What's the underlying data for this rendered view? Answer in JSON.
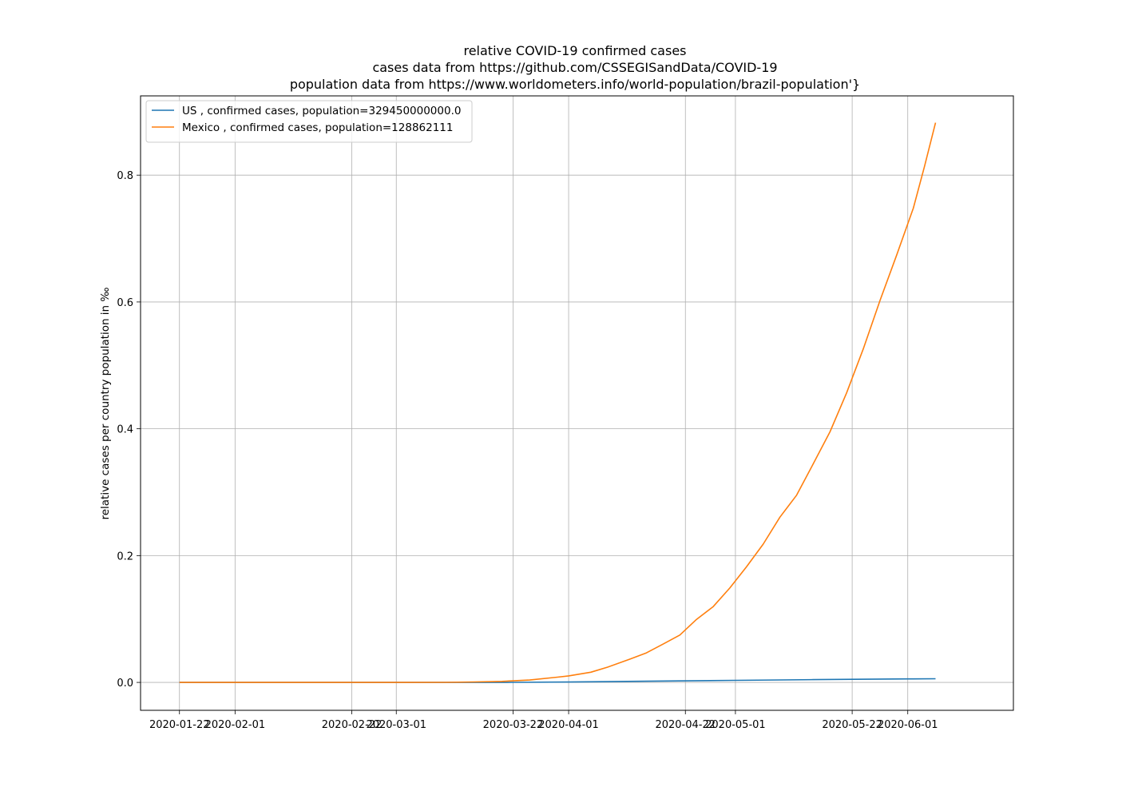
{
  "chart_data": {
    "type": "line",
    "title": "relative COVID-19 confirmed cases",
    "subtitle_lines": [
      "cases data from https://github.com/CSSEGISandData/COVID-19",
      "population data from https://www.worldometers.info/world-population/brazil-population'}"
    ],
    "xlabel": "",
    "ylabel": "relative cases per country population in ‰",
    "x_ticks": [
      "2020-01-22",
      "2020-02-01",
      "2020-02-22",
      "2020-03-01",
      "2020-03-22",
      "2020-04-01",
      "2020-04-22",
      "2020-05-01",
      "2020-05-22",
      "2020-06-01"
    ],
    "y_ticks": [
      "0.0",
      "0.2",
      "0.4",
      "0.6",
      "0.8"
    ],
    "xlim": [
      "2020-01-15",
      "2020-06-20"
    ],
    "ylim": [
      -0.044,
      0.925
    ],
    "grid": true,
    "legend_position": "top-left",
    "series": [
      {
        "name": "US , confirmed cases, population=329450000000.0",
        "color": "#1f77b4",
        "points": [
          [
            "2020-01-22",
            0.0
          ],
          [
            "2020-03-01",
            0.0
          ],
          [
            "2020-03-15",
            0.0
          ],
          [
            "2020-03-22",
            0.0001
          ],
          [
            "2020-04-01",
            0.0006
          ],
          [
            "2020-04-15",
            0.0019
          ],
          [
            "2020-05-01",
            0.0033
          ],
          [
            "2020-05-15",
            0.0044
          ],
          [
            "2020-06-01",
            0.0055
          ],
          [
            "2020-06-06",
            0.0058
          ]
        ]
      },
      {
        "name": "Mexico , confirmed cases, population=128862111",
        "color": "#ff7f0e",
        "points": [
          [
            "2020-01-22",
            0.0
          ],
          [
            "2020-02-28",
            0.0
          ],
          [
            "2020-03-10",
            0.0001
          ],
          [
            "2020-03-15",
            0.0007
          ],
          [
            "2020-03-20",
            0.0016
          ],
          [
            "2020-03-25",
            0.0037
          ],
          [
            "2020-03-30",
            0.0083
          ],
          [
            "2020-04-01",
            0.0103
          ],
          [
            "2020-04-05",
            0.0161
          ],
          [
            "2020-04-08",
            0.0241
          ],
          [
            "2020-04-12",
            0.0366
          ],
          [
            "2020-04-15",
            0.0466
          ],
          [
            "2020-04-18",
            0.0605
          ],
          [
            "2020-04-21",
            0.0747
          ],
          [
            "2020-04-24",
            0.0994
          ],
          [
            "2020-04-27",
            0.1195
          ],
          [
            "2020-04-30",
            0.1489
          ],
          [
            "2020-05-03",
            0.1823
          ],
          [
            "2020-05-06",
            0.2181
          ],
          [
            "2020-05-09",
            0.2605
          ],
          [
            "2020-05-12",
            0.2952
          ],
          [
            "2020-05-15",
            0.3449
          ],
          [
            "2020-05-18",
            0.3952
          ],
          [
            "2020-05-21",
            0.4565
          ],
          [
            "2020-05-24",
            0.5259
          ],
          [
            "2020-05-27",
            0.6021
          ],
          [
            "2020-05-30",
            0.6739
          ],
          [
            "2020-06-02",
            0.7479
          ],
          [
            "2020-06-04",
            0.8133
          ],
          [
            "2020-06-06",
            0.8826
          ]
        ]
      }
    ]
  }
}
